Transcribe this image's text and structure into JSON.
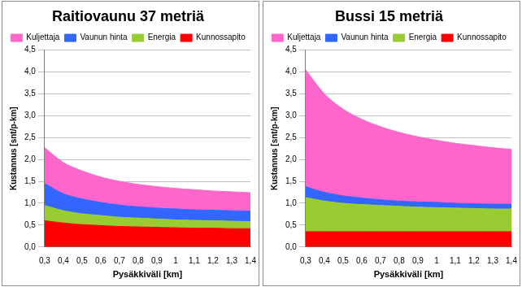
{
  "chart_data": [
    {
      "type": "area",
      "title": "Raitiovaunu 37 metriä",
      "x_label": "Pysäkkiväli [km]",
      "y_label": "Kustannus [snt/p-km]",
      "x": [
        0.3,
        0.4,
        0.5,
        0.6,
        0.7,
        0.8,
        0.9,
        1.0,
        1.1,
        1.2,
        1.3,
        1.4
      ],
      "stacked": true,
      "grid": true,
      "legend": "top",
      "xlim": [
        0.3,
        1.4
      ],
      "xticks": [
        {
          "value": 0.3,
          "label": "0,3"
        },
        {
          "value": 0.4,
          "label": "0,4"
        },
        {
          "value": 0.5,
          "label": "0,5"
        },
        {
          "value": 0.6,
          "label": "0,6"
        },
        {
          "value": 0.7,
          "label": "0,7"
        },
        {
          "value": 0.8,
          "label": "0,8"
        },
        {
          "value": 0.9,
          "label": "0,9"
        },
        {
          "value": 1.0,
          "label": "1"
        },
        {
          "value": 1.1,
          "label": "1,1"
        },
        {
          "value": 1.2,
          "label": "1,2"
        },
        {
          "value": 1.3,
          "label": "1,3"
        },
        {
          "value": 1.4,
          "label": "1,4"
        }
      ],
      "ylim": [
        0,
        4.5
      ],
      "yticks": [
        {
          "value": 0,
          "label": "0,0"
        },
        {
          "value": 0.5,
          "label": "0,5"
        },
        {
          "value": 1.0,
          "label": "1,0"
        },
        {
          "value": 1.5,
          "label": "1,5"
        },
        {
          "value": 2.0,
          "label": "2,0"
        },
        {
          "value": 2.5,
          "label": "2,5"
        },
        {
          "value": 3.0,
          "label": "3,0"
        },
        {
          "value": 3.5,
          "label": "3,5"
        },
        {
          "value": 4.0,
          "label": "4,0"
        },
        {
          "value": 4.5,
          "label": "4,5"
        }
      ],
      "series": [
        {
          "name": "Kuljettaja",
          "color": "#ff66cc",
          "values": [
            0.82,
            0.71,
            0.64,
            0.58,
            0.54,
            0.51,
            0.49,
            0.47,
            0.46,
            0.44,
            0.43,
            0.42
          ]
        },
        {
          "name": "Vaunun hinta",
          "color": "#3366ff",
          "values": [
            0.5,
            0.39,
            0.34,
            0.3,
            0.28,
            0.26,
            0.25,
            0.25,
            0.24,
            0.24,
            0.24,
            0.24
          ]
        },
        {
          "name": "Energia",
          "color": "#99cc33",
          "values": [
            0.35,
            0.28,
            0.25,
            0.23,
            0.21,
            0.2,
            0.19,
            0.18,
            0.18,
            0.17,
            0.17,
            0.16
          ]
        },
        {
          "name": "Kunnossapito",
          "color": "#ff0000",
          "values": [
            0.6,
            0.55,
            0.51,
            0.49,
            0.47,
            0.46,
            0.45,
            0.44,
            0.43,
            0.43,
            0.42,
            0.42
          ]
        }
      ]
    },
    {
      "type": "area",
      "title": "Bussi 15 metriä",
      "x_label": "Pysäkkiväli [km]",
      "y_label": "Kustannus [snt/p-km]",
      "x": [
        0.3,
        0.4,
        0.5,
        0.6,
        0.7,
        0.8,
        0.9,
        1.0,
        1.1,
        1.2,
        1.3,
        1.4
      ],
      "stacked": true,
      "grid": true,
      "legend": "top",
      "xlim": [
        0.3,
        1.4
      ],
      "xticks": [
        {
          "value": 0.3,
          "label": "0,3"
        },
        {
          "value": 0.4,
          "label": "0,4"
        },
        {
          "value": 0.5,
          "label": "0,5"
        },
        {
          "value": 0.6,
          "label": "0,6"
        },
        {
          "value": 0.7,
          "label": "0,7"
        },
        {
          "value": 0.8,
          "label": "0,8"
        },
        {
          "value": 0.9,
          "label": "0,9"
        },
        {
          "value": 1.0,
          "label": "1"
        },
        {
          "value": 1.1,
          "label": "1,1"
        },
        {
          "value": 1.2,
          "label": "1,2"
        },
        {
          "value": 1.3,
          "label": "1,3"
        },
        {
          "value": 1.4,
          "label": "1,4"
        }
      ],
      "ylim": [
        0,
        4.5
      ],
      "yticks": [
        {
          "value": 0,
          "label": "0,0"
        },
        {
          "value": 0.5,
          "label": "0,5"
        },
        {
          "value": 1.0,
          "label": "1,0"
        },
        {
          "value": 1.5,
          "label": "1,5"
        },
        {
          "value": 2.0,
          "label": "2,0"
        },
        {
          "value": 2.5,
          "label": "2,5"
        },
        {
          "value": 3.0,
          "label": "3,0"
        },
        {
          "value": 3.5,
          "label": "3,5"
        },
        {
          "value": 4.0,
          "label": "4,0"
        },
        {
          "value": 4.5,
          "label": "4,5"
        }
      ],
      "series": [
        {
          "name": "Kuljettaja",
          "color": "#ff66cc",
          "values": [
            2.67,
            2.25,
            1.98,
            1.8,
            1.67,
            1.57,
            1.49,
            1.42,
            1.37,
            1.33,
            1.29,
            1.25
          ]
        },
        {
          "name": "Vaunun hinta",
          "color": "#3366ff",
          "values": [
            0.25,
            0.2,
            0.17,
            0.15,
            0.13,
            0.12,
            0.12,
            0.12,
            0.11,
            0.11,
            0.11,
            0.11
          ]
        },
        {
          "name": "Energia",
          "color": "#99cc33",
          "values": [
            0.78,
            0.7,
            0.65,
            0.62,
            0.6,
            0.58,
            0.56,
            0.55,
            0.54,
            0.53,
            0.52,
            0.52
          ]
        },
        {
          "name": "Kunnossapito",
          "color": "#ff0000",
          "values": [
            0.35,
            0.35,
            0.35,
            0.35,
            0.35,
            0.35,
            0.35,
            0.35,
            0.35,
            0.35,
            0.35,
            0.35
          ]
        }
      ]
    }
  ]
}
